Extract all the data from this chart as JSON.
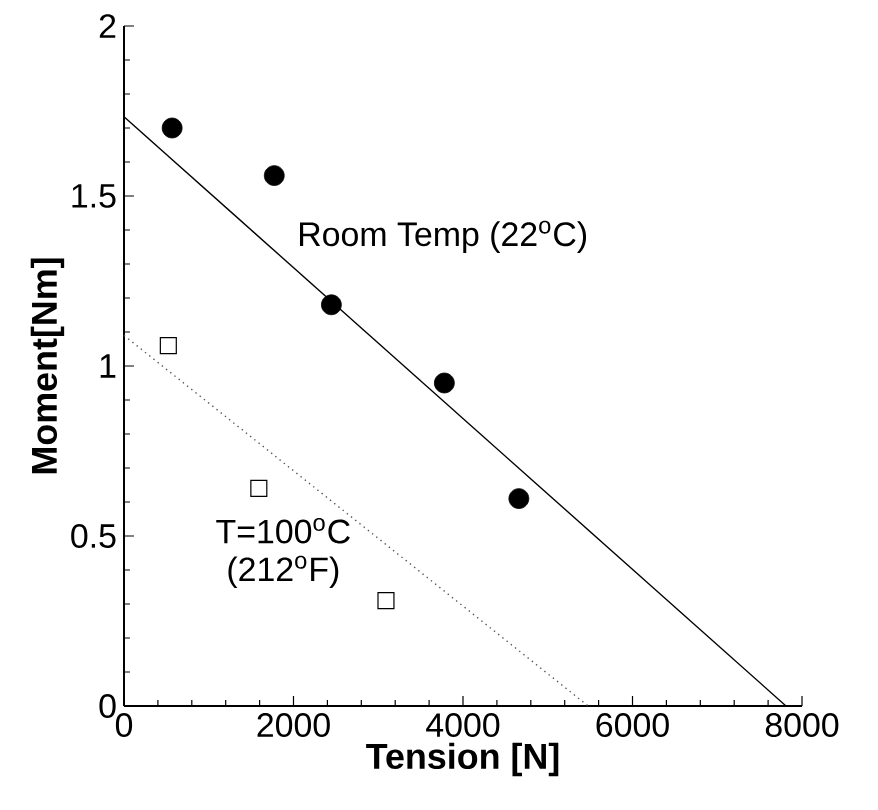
{
  "chart_data": {
    "type": "scatter",
    "xlabel": "Tension [N]",
    "ylabel": "Moment[Nm]",
    "xlim": [
      0,
      8000
    ],
    "ylim": [
      0,
      2
    ],
    "xticks": [
      0,
      2000,
      4000,
      6000,
      8000
    ],
    "yticks": [
      0,
      0.5,
      1,
      1.5,
      2
    ],
    "grid": false,
    "legend": false,
    "series": [
      {
        "name": "Room Temp (22$^{o}$C)",
        "marker": "circle",
        "color": "#000000",
        "x": [
          568,
          1773,
          2447,
          3780,
          4659
        ],
        "values": [
          1.7,
          1.56,
          1.18,
          0.95,
          0.61
        ]
      },
      {
        "name": "T=100$^{o}$C (212$^{o}$F)",
        "marker": "square",
        "color": "#000000",
        "x": [
          523,
          1591,
          3091
        ],
        "values": [
          1.06,
          0.64,
          0.31
        ]
      },
      {
        "type": "line",
        "marker": "none",
        "line_style": "solid",
        "color": "#000000",
        "x": [
          0,
          7811
        ],
        "values": [
          1.733,
          0
        ]
      },
      {
        "type": "line",
        "marker": "none",
        "line_style": "dotted",
        "color": "#555555",
        "x": [
          0,
          5477
        ],
        "values": [
          1.09,
          0
        ]
      }
    ]
  }
}
